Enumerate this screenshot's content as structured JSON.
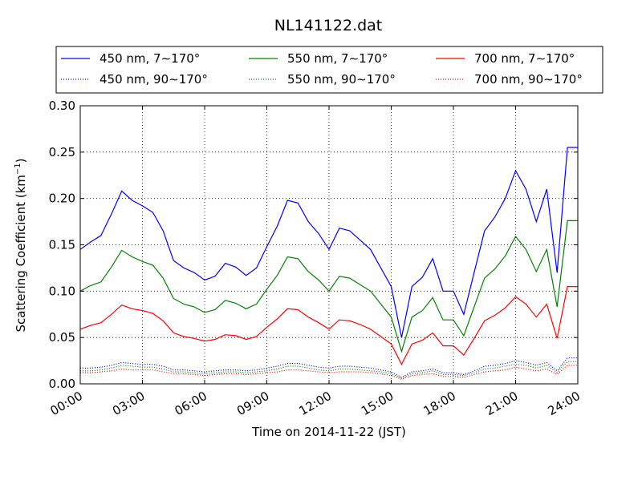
{
  "chart_data": {
    "type": "line",
    "title": "NL141122.dat",
    "xlabel": "Time on 2014-11-22 (JST)",
    "ylabel": "Scattering Coefficient (km",
    "ylabel_sup": "−1",
    "ylabel_end": ")",
    "xlim_hours": [
      0,
      24
    ],
    "ylim": [
      0,
      0.3
    ],
    "grid": true,
    "legend_placement": "top, above plot, 3 columns",
    "x_ticks_hours": [
      0,
      3,
      6,
      9,
      12,
      15,
      18,
      21,
      24
    ],
    "x_tick_labels": [
      "00:00",
      "03:00",
      "06:00",
      "09:00",
      "12:00",
      "15:00",
      "18:00",
      "21:00",
      "24:00"
    ],
    "y_ticks": [
      0,
      0.05,
      0.1,
      0.15,
      0.2,
      0.25,
      0.3
    ],
    "y_tick_labels": [
      "0.00",
      "0.05",
      "0.10",
      "0.15",
      "0.20",
      "0.25",
      "0.30"
    ],
    "x_hours": [
      0,
      0.5,
      1,
      1.5,
      2,
      2.5,
      3,
      3.5,
      4,
      4.5,
      5,
      5.5,
      6,
      6.5,
      7,
      7.5,
      8,
      8.5,
      9,
      9.5,
      10,
      10.5,
      11,
      11.5,
      12,
      12.5,
      13,
      13.5,
      14,
      14.5,
      15,
      15.5,
      16,
      16.5,
      17,
      17.5,
      18,
      18.5,
      19,
      19.5,
      20,
      20.5,
      21,
      21.5,
      22,
      22.5,
      23,
      23.5,
      24
    ],
    "series": [
      {
        "name": "450 nm, 7∼170°",
        "color": "#0000ff",
        "style": "solid",
        "values": [
          0.145,
          0.153,
          0.16,
          0.183,
          0.208,
          0.198,
          0.192,
          0.185,
          0.165,
          0.133,
          0.125,
          0.12,
          0.112,
          0.116,
          0.13,
          0.126,
          0.117,
          0.125,
          0.148,
          0.17,
          0.198,
          0.195,
          0.175,
          0.162,
          0.145,
          0.168,
          0.165,
          0.155,
          0.145,
          0.125,
          0.105,
          0.05,
          0.105,
          0.115,
          0.135,
          0.1,
          0.1,
          0.075,
          0.12,
          0.165,
          0.18,
          0.2,
          0.23,
          0.21,
          0.175,
          0.21,
          0.12,
          0.255,
          0.255
        ]
      },
      {
        "name": "550 nm, 7∼170°",
        "color": "#008000",
        "style": "solid",
        "values": [
          0.1,
          0.106,
          0.11,
          0.126,
          0.144,
          0.137,
          0.132,
          0.128,
          0.114,
          0.092,
          0.086,
          0.083,
          0.077,
          0.08,
          0.09,
          0.087,
          0.081,
          0.086,
          0.102,
          0.117,
          0.137,
          0.135,
          0.121,
          0.112,
          0.1,
          0.116,
          0.114,
          0.107,
          0.1,
          0.086,
          0.072,
          0.035,
          0.072,
          0.079,
          0.093,
          0.069,
          0.069,
          0.052,
          0.083,
          0.114,
          0.124,
          0.138,
          0.159,
          0.145,
          0.121,
          0.145,
          0.083,
          0.176,
          0.176
        ]
      },
      {
        "name": "700 nm, 7∼170°",
        "color": "#ff0000",
        "style": "solid",
        "values": [
          0.059,
          0.063,
          0.066,
          0.075,
          0.085,
          0.081,
          0.079,
          0.076,
          0.068,
          0.055,
          0.051,
          0.049,
          0.046,
          0.048,
          0.053,
          0.052,
          0.048,
          0.051,
          0.061,
          0.07,
          0.081,
          0.08,
          0.072,
          0.066,
          0.059,
          0.069,
          0.068,
          0.064,
          0.059,
          0.051,
          0.043,
          0.021,
          0.043,
          0.047,
          0.055,
          0.041,
          0.041,
          0.031,
          0.049,
          0.068,
          0.074,
          0.082,
          0.094,
          0.086,
          0.072,
          0.086,
          0.049,
          0.105,
          0.105
        ]
      },
      {
        "name": "450 nm, 90∼170°",
        "color": "#0000ff",
        "style": "dotted",
        "values": [
          0.017,
          0.017,
          0.018,
          0.02,
          0.023,
          0.022,
          0.021,
          0.021,
          0.019,
          0.015,
          0.015,
          0.014,
          0.013,
          0.014,
          0.015,
          0.015,
          0.014,
          0.015,
          0.017,
          0.019,
          0.022,
          0.022,
          0.02,
          0.018,
          0.017,
          0.019,
          0.019,
          0.018,
          0.017,
          0.015,
          0.013,
          0.007,
          0.013,
          0.014,
          0.016,
          0.012,
          0.012,
          0.01,
          0.014,
          0.019,
          0.02,
          0.022,
          0.025,
          0.023,
          0.02,
          0.023,
          0.014,
          0.028,
          0.028
        ]
      },
      {
        "name": "550 nm, 90∼170°",
        "color": "#008000",
        "style": "dotted",
        "values": [
          0.014,
          0.014,
          0.015,
          0.017,
          0.02,
          0.019,
          0.018,
          0.018,
          0.016,
          0.013,
          0.013,
          0.012,
          0.011,
          0.012,
          0.013,
          0.013,
          0.012,
          0.013,
          0.014,
          0.016,
          0.019,
          0.019,
          0.017,
          0.015,
          0.014,
          0.016,
          0.016,
          0.015,
          0.014,
          0.013,
          0.011,
          0.006,
          0.011,
          0.012,
          0.014,
          0.01,
          0.01,
          0.009,
          0.012,
          0.016,
          0.017,
          0.019,
          0.021,
          0.02,
          0.017,
          0.02,
          0.012,
          0.024,
          0.024
        ]
      },
      {
        "name": "700 nm, 90∼170°",
        "color": "#ff0000",
        "style": "dotted",
        "values": [
          0.012,
          0.012,
          0.013,
          0.014,
          0.016,
          0.015,
          0.015,
          0.015,
          0.013,
          0.011,
          0.011,
          0.01,
          0.009,
          0.01,
          0.011,
          0.011,
          0.01,
          0.011,
          0.012,
          0.013,
          0.015,
          0.015,
          0.014,
          0.013,
          0.012,
          0.013,
          0.013,
          0.013,
          0.012,
          0.011,
          0.009,
          0.005,
          0.009,
          0.01,
          0.011,
          0.008,
          0.008,
          0.007,
          0.01,
          0.013,
          0.014,
          0.015,
          0.018,
          0.016,
          0.014,
          0.016,
          0.01,
          0.02,
          0.02
        ]
      }
    ],
    "legend_order": [
      0,
      1,
      2,
      3,
      4,
      5
    ]
  }
}
